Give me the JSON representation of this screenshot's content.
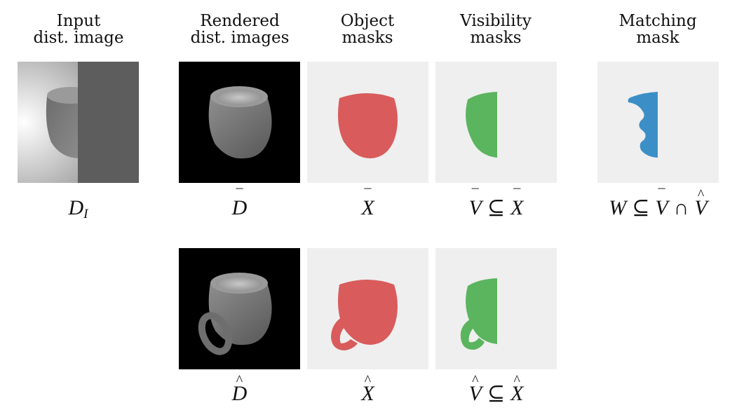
{
  "headers": {
    "input": [
      "Input",
      "dist. image"
    ],
    "rendered": [
      "Rendered",
      "dist. images"
    ],
    "object": [
      "Object",
      "masks"
    ],
    "visibility": [
      "Visibility",
      "masks"
    ],
    "matching": [
      "Matching",
      "mask"
    ]
  },
  "labels": {
    "d_i": {
      "base": "D",
      "sub": "I"
    },
    "d_bar": {
      "base": "D",
      "accent": "¯"
    },
    "x_bar": {
      "base": "X",
      "accent": "¯"
    },
    "v_bar_subset": {
      "left": "V",
      "left_accent": "¯",
      "op": "⊆",
      "right": "X",
      "right_accent": "¯"
    },
    "w_subset": {
      "w": "W",
      "op1": "⊆",
      "a": "V",
      "a_accent": "¯",
      "op2": "∩",
      "b": "V",
      "b_accent": "^"
    },
    "d_hat": {
      "base": "D",
      "accent": "^"
    },
    "x_hat": {
      "base": "X",
      "accent": "^"
    },
    "v_hat_subset": {
      "left": "V",
      "left_accent": "^",
      "op": "⊆",
      "right": "X",
      "right_accent": "^"
    }
  },
  "colors": {
    "object_mask": "#d95b5b",
    "visibility_mask": "#5bb45e",
    "matching_mask": "#3b8fc6",
    "mask_background": "#efefef",
    "render_background": "#000000"
  }
}
